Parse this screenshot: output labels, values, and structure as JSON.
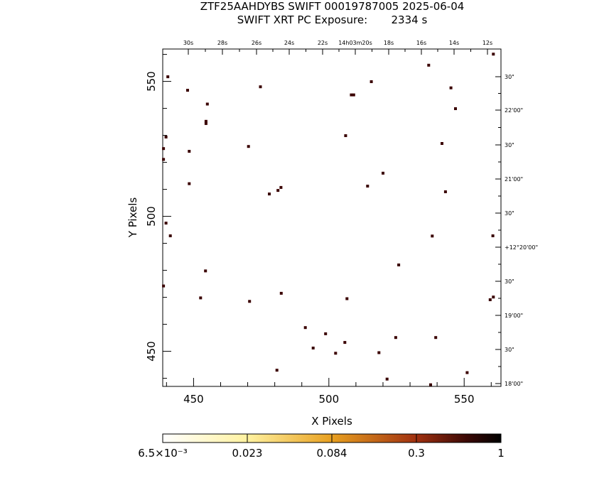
{
  "chart_data": {
    "type": "scatter",
    "title": "ZTF25AAHDYBS SWIFT 00019787005 2025-06-04",
    "subtitle": "SWIFT XRT PC Exposure:       2334 s",
    "xlabel": "X Pixels",
    "ylabel": "Y Pixels",
    "xlim": [
      438.6,
      563.6
    ],
    "ylim": [
      437.0,
      562.0
    ],
    "x_ticks": [
      450,
      500,
      550
    ],
    "y_ticks": [
      450,
      500,
      550
    ],
    "ra_ticks": [
      "30s",
      "28s",
      "26s",
      "24s",
      "22s",
      "14h03m20s",
      "18s",
      "16s",
      "14s",
      "12s"
    ],
    "dec_ticks": [
      "30\"",
      "22'00\"",
      "30\"",
      "21'00\"",
      "30\"",
      "+12°20'00\"",
      "30\"",
      "19'00\"",
      "30\"",
      "18'00\""
    ],
    "colorbar": {
      "labels": [
        "6.5×10⁻³",
        "0.023",
        "0.084",
        "0.3",
        "1"
      ]
    },
    "points": [
      {
        "x": 440.5,
        "y": 551.7
      },
      {
        "x": 447.8,
        "y": 546.7
      },
      {
        "x": 455.1,
        "y": 541.6
      },
      {
        "x": 454.6,
        "y": 535.2
      },
      {
        "x": 454.6,
        "y": 534.4
      },
      {
        "x": 439.8,
        "y": 529.4
      },
      {
        "x": 438.9,
        "y": 525.1
      },
      {
        "x": 448.4,
        "y": 524.1
      },
      {
        "x": 438.9,
        "y": 521.1
      },
      {
        "x": 448.4,
        "y": 512.1
      },
      {
        "x": 439.8,
        "y": 497.5
      },
      {
        "x": 441.4,
        "y": 492.8
      },
      {
        "x": 438.9,
        "y": 474.2
      },
      {
        "x": 454.4,
        "y": 479.8
      },
      {
        "x": 452.6,
        "y": 469.8
      },
      {
        "x": 474.7,
        "y": 548.0
      },
      {
        "x": 470.3,
        "y": 525.9
      },
      {
        "x": 478.0,
        "y": 508.3
      },
      {
        "x": 481.2,
        "y": 509.6
      },
      {
        "x": 482.3,
        "y": 510.7
      },
      {
        "x": 470.7,
        "y": 468.5
      },
      {
        "x": 482.4,
        "y": 471.5
      },
      {
        "x": 491.3,
        "y": 458.8
      },
      {
        "x": 494.2,
        "y": 451.2
      },
      {
        "x": 480.8,
        "y": 443.0
      },
      {
        "x": 498.8,
        "y": 456.5
      },
      {
        "x": 502.5,
        "y": 449.3
      },
      {
        "x": 505.9,
        "y": 453.3
      },
      {
        "x": 506.7,
        "y": 469.5
      },
      {
        "x": 509.2,
        "y": 545.0
      },
      {
        "x": 508.3,
        "y": 545.0
      },
      {
        "x": 506.2,
        "y": 529.9
      },
      {
        "x": 515.7,
        "y": 549.9
      },
      {
        "x": 514.3,
        "y": 511.2
      },
      {
        "x": 520.0,
        "y": 516.0
      },
      {
        "x": 525.8,
        "y": 482.0
      },
      {
        "x": 518.5,
        "y": 449.5
      },
      {
        "x": 524.7,
        "y": 455.1
      },
      {
        "x": 521.5,
        "y": 439.7
      },
      {
        "x": 536.9,
        "y": 556.0
      },
      {
        "x": 545.1,
        "y": 547.6
      },
      {
        "x": 546.8,
        "y": 539.9
      },
      {
        "x": 541.8,
        "y": 527.0
      },
      {
        "x": 543.1,
        "y": 509.1
      },
      {
        "x": 538.2,
        "y": 492.7
      },
      {
        "x": 539.5,
        "y": 455.1
      },
      {
        "x": 537.6,
        "y": 437.6
      },
      {
        "x": 551.1,
        "y": 442.1
      },
      {
        "x": 560.8,
        "y": 560.1
      },
      {
        "x": 560.6,
        "y": 492.8
      },
      {
        "x": 560.8,
        "y": 470.1
      },
      {
        "x": 559.6,
        "y": 469.1
      }
    ]
  }
}
